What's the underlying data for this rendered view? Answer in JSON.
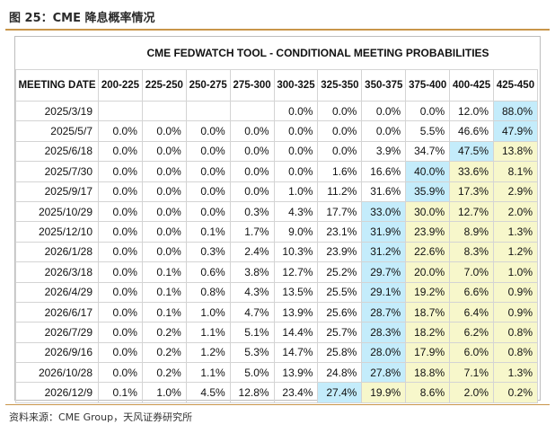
{
  "figure": {
    "title": "图 25：CME 降息概率情况",
    "source": "资料来源：CME Group，天风证券研究所"
  },
  "table": {
    "tool_title": "CME FEDWATCH TOOL - CONDITIONAL MEETING PROBABILITIES",
    "date_header": "MEETING DATE",
    "columns": [
      "200-225",
      "225-250",
      "250-275",
      "275-300",
      "300-325",
      "325-350",
      "350-375",
      "375-400",
      "400-425",
      "425-450"
    ],
    "rows": [
      {
        "date": "2025/3/19",
        "values": [
          "",
          "",
          "",
          "",
          "0.0%",
          "0.0%",
          "0.0%",
          "0.0%",
          "12.0%",
          "88.0%"
        ],
        "shade": [
          "",
          "",
          "",
          "",
          "",
          "",
          "",
          "",
          "",
          "b"
        ]
      },
      {
        "date": "2025/5/7",
        "values": [
          "0.0%",
          "0.0%",
          "0.0%",
          "0.0%",
          "0.0%",
          "0.0%",
          "0.0%",
          "5.5%",
          "46.6%",
          "47.9%"
        ],
        "shade": [
          "",
          "",
          "",
          "",
          "",
          "",
          "",
          "",
          "",
          "b"
        ]
      },
      {
        "date": "2025/6/18",
        "values": [
          "0.0%",
          "0.0%",
          "0.0%",
          "0.0%",
          "0.0%",
          "0.0%",
          "3.9%",
          "34.7%",
          "47.5%",
          "13.8%"
        ],
        "shade": [
          "",
          "",
          "",
          "",
          "",
          "",
          "",
          "",
          "b",
          "y"
        ]
      },
      {
        "date": "2025/7/30",
        "values": [
          "0.0%",
          "0.0%",
          "0.0%",
          "0.0%",
          "0.0%",
          "1.6%",
          "16.6%",
          "40.0%",
          "33.6%",
          "8.1%"
        ],
        "shade": [
          "",
          "",
          "",
          "",
          "",
          "",
          "",
          "b",
          "y",
          "y"
        ]
      },
      {
        "date": "2025/9/17",
        "values": [
          "0.0%",
          "0.0%",
          "0.0%",
          "0.0%",
          "1.0%",
          "11.2%",
          "31.6%",
          "35.9%",
          "17.3%",
          "2.9%"
        ],
        "shade": [
          "",
          "",
          "",
          "",
          "",
          "",
          "",
          "b",
          "y",
          "y"
        ]
      },
      {
        "date": "2025/10/29",
        "values": [
          "0.0%",
          "0.0%",
          "0.0%",
          "0.3%",
          "4.3%",
          "17.7%",
          "33.0%",
          "30.0%",
          "12.7%",
          "2.0%"
        ],
        "shade": [
          "",
          "",
          "",
          "",
          "",
          "",
          "b",
          "y",
          "y",
          "y"
        ]
      },
      {
        "date": "2025/12/10",
        "values": [
          "0.0%",
          "0.0%",
          "0.1%",
          "1.7%",
          "9.0%",
          "23.1%",
          "31.9%",
          "23.9%",
          "8.9%",
          "1.3%"
        ],
        "shade": [
          "",
          "",
          "",
          "",
          "",
          "",
          "b",
          "y",
          "y",
          "y"
        ]
      },
      {
        "date": "2026/1/28",
        "values": [
          "0.0%",
          "0.0%",
          "0.3%",
          "2.4%",
          "10.3%",
          "23.9%",
          "31.2%",
          "22.6%",
          "8.3%",
          "1.2%"
        ],
        "shade": [
          "",
          "",
          "",
          "",
          "",
          "",
          "b",
          "y",
          "y",
          "y"
        ]
      },
      {
        "date": "2026/3/18",
        "values": [
          "0.0%",
          "0.1%",
          "0.6%",
          "3.8%",
          "12.7%",
          "25.2%",
          "29.7%",
          "20.0%",
          "7.0%",
          "1.0%"
        ],
        "shade": [
          "",
          "",
          "",
          "",
          "",
          "",
          "b",
          "y",
          "y",
          "y"
        ]
      },
      {
        "date": "2026/4/29",
        "values": [
          "0.0%",
          "0.1%",
          "0.8%",
          "4.3%",
          "13.5%",
          "25.5%",
          "29.1%",
          "19.2%",
          "6.6%",
          "0.9%"
        ],
        "shade": [
          "",
          "",
          "",
          "",
          "",
          "",
          "b",
          "y",
          "y",
          "y"
        ]
      },
      {
        "date": "2026/6/17",
        "values": [
          "0.0%",
          "0.1%",
          "1.0%",
          "4.7%",
          "13.9%",
          "25.6%",
          "28.7%",
          "18.7%",
          "6.4%",
          "0.9%"
        ],
        "shade": [
          "",
          "",
          "",
          "",
          "",
          "",
          "b",
          "y",
          "y",
          "y"
        ]
      },
      {
        "date": "2026/7/29",
        "values": [
          "0.0%",
          "0.2%",
          "1.1%",
          "5.1%",
          "14.4%",
          "25.7%",
          "28.3%",
          "18.2%",
          "6.2%",
          "0.8%"
        ],
        "shade": [
          "",
          "",
          "",
          "",
          "",
          "",
          "b",
          "y",
          "y",
          "y"
        ]
      },
      {
        "date": "2026/9/16",
        "values": [
          "0.0%",
          "0.2%",
          "1.2%",
          "5.3%",
          "14.7%",
          "25.8%",
          "28.0%",
          "17.9%",
          "6.0%",
          "0.8%"
        ],
        "shade": [
          "",
          "",
          "",
          "",
          "",
          "",
          "b",
          "y",
          "y",
          "y"
        ]
      },
      {
        "date": "2026/10/28",
        "values": [
          "0.0%",
          "0.2%",
          "1.1%",
          "5.0%",
          "13.9%",
          "24.8%",
          "27.8%",
          "18.8%",
          "7.1%",
          "1.3%"
        ],
        "shade": [
          "",
          "",
          "",
          "",
          "",
          "",
          "b",
          "y",
          "y",
          "y"
        ]
      },
      {
        "date": "2026/12/9",
        "values": [
          "0.1%",
          "1.0%",
          "4.5%",
          "12.8%",
          "23.4%",
          "27.4%",
          "19.9%",
          "8.6%",
          "2.0%",
          "0.2%"
        ],
        "shade": [
          "",
          "",
          "",
          "",
          "",
          "b",
          "y",
          "y",
          "y",
          "y"
        ]
      }
    ],
    "colors": {
      "highlight_max": "#c4ecfb",
      "highlight_after": "#f7f7cb"
    }
  }
}
